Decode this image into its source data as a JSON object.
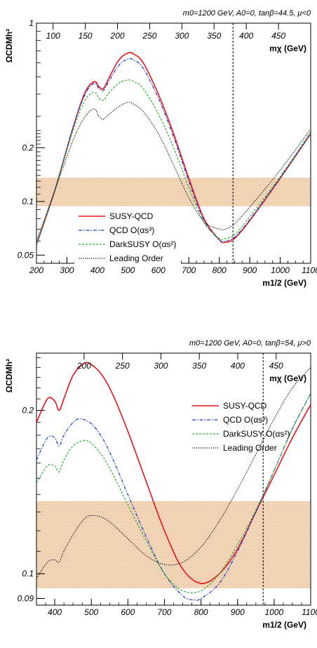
{
  "chart_data": [
    {
      "type": "line",
      "title": "m0=1200 GeV,  A0=0,  tanβ=44.5, μ<0",
      "xlabel": "m1/2 (GeV)",
      "ylabel": "ΩCDMh²",
      "top_axis_label": "mχ (GeV)",
      "log_y": true,
      "xlim": [
        200,
        1100
      ],
      "ylim": [
        0.045,
        1.0
      ],
      "x_ticks": [
        "200",
        "300",
        "400",
        "500",
        "600",
        "700",
        "800",
        "900",
        "1000",
        "1100"
      ],
      "y_ticks": [
        {
          "v": 1,
          "label": "1"
        },
        {
          "v": 0.2,
          "label": "0.2"
        },
        {
          "v": 0.1,
          "label": "0.1"
        },
        {
          "v": 0.05,
          "label": "0.05"
        }
      ],
      "top_ticks": [
        "100",
        "150",
        "200",
        "250",
        "300",
        "350",
        "400",
        "450"
      ],
      "band": [
        0.094,
        0.136
      ],
      "vline": 845,
      "legend_position": "lower-left",
      "series": [
        {
          "name": "SUSY-QCD",
          "color": "#e8141c",
          "dash": "",
          "x": [
            200,
            260,
            320,
            360,
            390,
            405,
            420,
            440,
            470,
            500,
            520,
            550,
            600,
            650,
            700,
            750,
            800,
            820,
            850,
            900,
            1000,
            1100
          ],
          "y": [
            0.057,
            0.115,
            0.26,
            0.41,
            0.47,
            0.44,
            0.43,
            0.5,
            0.62,
            0.68,
            0.67,
            0.6,
            0.4,
            0.24,
            0.135,
            0.08,
            0.061,
            0.059,
            0.062,
            0.078,
            0.135,
            0.24
          ]
        },
        {
          "name": "QCD O(αs³)",
          "color": "#1a3ad6",
          "dash": "5,2,1.5,2",
          "x": [
            200,
            260,
            320,
            360,
            390,
            405,
            420,
            440,
            470,
            500,
            520,
            550,
            600,
            650,
            700,
            750,
            800,
            820,
            850,
            900,
            1000,
            1100
          ],
          "y": [
            0.057,
            0.116,
            0.26,
            0.4,
            0.46,
            0.43,
            0.42,
            0.48,
            0.58,
            0.63,
            0.62,
            0.56,
            0.38,
            0.23,
            0.13,
            0.078,
            0.061,
            0.06,
            0.063,
            0.079,
            0.136,
            0.24
          ]
        },
        {
          "name": "DarkSUSY O(αs²)",
          "color": "#2cb02c",
          "dash": "3,2",
          "x": [
            200,
            260,
            320,
            360,
            390,
            405,
            420,
            440,
            470,
            500,
            520,
            550,
            600,
            650,
            700,
            750,
            800,
            820,
            850,
            900,
            1000,
            1100
          ],
          "y": [
            0.058,
            0.115,
            0.25,
            0.37,
            0.41,
            0.38,
            0.37,
            0.41,
            0.46,
            0.48,
            0.47,
            0.43,
            0.31,
            0.2,
            0.12,
            0.076,
            0.062,
            0.062,
            0.065,
            0.082,
            0.138,
            0.245
          ]
        },
        {
          "name": "Leading Order",
          "color": "#000000",
          "dash": "1.2,1.8",
          "x": [
            200,
            260,
            320,
            360,
            390,
            405,
            420,
            440,
            470,
            500,
            520,
            550,
            600,
            650,
            700,
            750,
            800,
            820,
            850,
            900,
            1000,
            1100
          ],
          "y": [
            0.06,
            0.115,
            0.22,
            0.3,
            0.33,
            0.3,
            0.29,
            0.31,
            0.34,
            0.36,
            0.35,
            0.32,
            0.24,
            0.16,
            0.105,
            0.077,
            0.07,
            0.07,
            0.075,
            0.093,
            0.15,
            0.255
          ]
        }
      ]
    },
    {
      "type": "line",
      "title": "m0=1200 GeV,  A0=0,  tanβ=54, μ>0",
      "xlabel": "m1/2 (GeV)",
      "ylabel": "ΩCDMh²",
      "top_axis_label": "mχ (GeV)",
      "log_y": true,
      "xlim": [
        350,
        1100
      ],
      "ylim": [
        0.0875,
        0.255
      ],
      "x_ticks": [
        "400",
        "500",
        "600",
        "700",
        "800",
        "900",
        "1000",
        "1100"
      ],
      "y_ticks": [
        {
          "v": 0.2,
          "label": "0.2"
        },
        {
          "v": 0.1,
          "label": "0.1"
        },
        {
          "v": 0.09,
          "label": "0.09"
        }
      ],
      "top_ticks": [
        "200",
        "250",
        "300",
        "350",
        "400",
        "450"
      ],
      "band": [
        0.094,
        0.136
      ],
      "vline": 970,
      "legend_position": "top-right",
      "series": [
        {
          "name": "SUSY-QCD",
          "color": "#e8141c",
          "dash": "",
          "x": [
            350,
            380,
            400,
            412,
            425,
            450,
            480,
            500,
            530,
            560,
            600,
            650,
            700,
            750,
            800,
            850,
            900,
            950,
            1000,
            1050,
            1100
          ],
          "y": [
            0.19,
            0.21,
            0.208,
            0.2,
            0.21,
            0.232,
            0.244,
            0.243,
            0.232,
            0.213,
            0.183,
            0.148,
            0.12,
            0.102,
            0.096,
            0.1,
            0.111,
            0.13,
            0.152,
            0.178,
            0.205
          ]
        },
        {
          "name": "QCD O(αs³)",
          "color": "#1a3ad6",
          "dash": "5,2,1.5,2",
          "x": [
            350,
            380,
            400,
            412,
            425,
            450,
            470,
            500,
            530,
            560,
            600,
            650,
            700,
            750,
            780,
            800,
            850,
            900,
            950,
            1000,
            1050,
            1100
          ],
          "y": [
            0.162,
            0.178,
            0.178,
            0.172,
            0.18,
            0.19,
            0.193,
            0.189,
            0.178,
            0.162,
            0.14,
            0.117,
            0.1,
            0.091,
            0.0895,
            0.09,
            0.096,
            0.11,
            0.13,
            0.155,
            0.185,
            0.215
          ]
        },
        {
          "name": "DarkSUSY O(αs²)",
          "color": "#2cb02c",
          "dash": "3,2",
          "x": [
            350,
            380,
            400,
            412,
            425,
            450,
            480,
            500,
            530,
            560,
            600,
            650,
            700,
            750,
            800,
            850,
            900,
            950,
            1000,
            1050,
            1100
          ],
          "y": [
            0.147,
            0.158,
            0.158,
            0.154,
            0.162,
            0.172,
            0.176,
            0.174,
            0.165,
            0.152,
            0.134,
            0.115,
            0.1,
            0.093,
            0.093,
            0.1,
            0.113,
            0.131,
            0.155,
            0.185,
            0.215
          ]
        },
        {
          "name": "Leading Order",
          "color": "#000000",
          "dash": "1.2,1.8",
          "x": [
            350,
            380,
            400,
            412,
            425,
            450,
            480,
            500,
            530,
            560,
            600,
            650,
            700,
            750,
            800,
            850,
            900,
            950,
            1000,
            1050,
            1100
          ],
          "y": [
            0.098,
            0.105,
            0.106,
            0.105,
            0.11,
            0.118,
            0.126,
            0.128,
            0.127,
            0.123,
            0.116,
            0.108,
            0.104,
            0.105,
            0.112,
            0.125,
            0.143,
            0.166,
            0.193,
            0.22,
            0.24
          ]
        }
      ]
    }
  ]
}
